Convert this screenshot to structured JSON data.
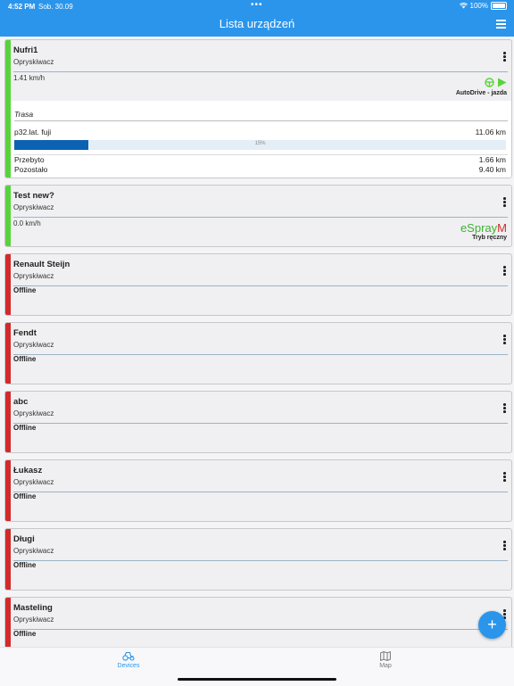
{
  "status_bar": {
    "time": "4:52 PM",
    "date": "Sob. 30.09",
    "battery": "100%"
  },
  "header": {
    "title": "Lista urządzeń"
  },
  "devices": [
    {
      "name": "Nufri1",
      "type": "Opryskiwacz",
      "status": "online",
      "speed": "1.41 km/h",
      "mode": "AutoDrive - jazda",
      "route": {
        "label": "Trasa",
        "name": "p32.lat. fuji",
        "total": "11.06 km",
        "progress_percent": 15,
        "progress_text": "15%",
        "done_label": "Przebyto",
        "done_value": "1.66 km",
        "left_label": "Pozostało",
        "left_value": "9.40 km"
      }
    },
    {
      "name": "Test new?",
      "type": "Opryskiwacz",
      "status": "online",
      "speed": "0.0 km/h",
      "logo_text": "eSpray",
      "logo_mark": "M",
      "mode": "Tryb ręczny"
    },
    {
      "name": "Renault Steijn",
      "type": "Opryskiwacz",
      "status": "Offline"
    },
    {
      "name": "Fendt",
      "type": "Opryskiwacz",
      "status": "Offline"
    },
    {
      "name": "abc",
      "type": "Opryskiwacz",
      "status": "Offline"
    },
    {
      "name": "Łukasz",
      "type": "Opryskiwacz",
      "status": "Offline"
    },
    {
      "name": "Długi",
      "type": "Opryskiwacz",
      "status": "Offline"
    },
    {
      "name": "Masteling",
      "type": "Opryskiwacz",
      "status": "Offline"
    }
  ],
  "fab": {
    "label": "+"
  },
  "tabbar": {
    "devices": "Devices",
    "map": "Map"
  },
  "colors": {
    "accent": "#2b95ec",
    "online": "#59d33b",
    "offline": "#d32a2a",
    "progress": "#0c62b2"
  }
}
